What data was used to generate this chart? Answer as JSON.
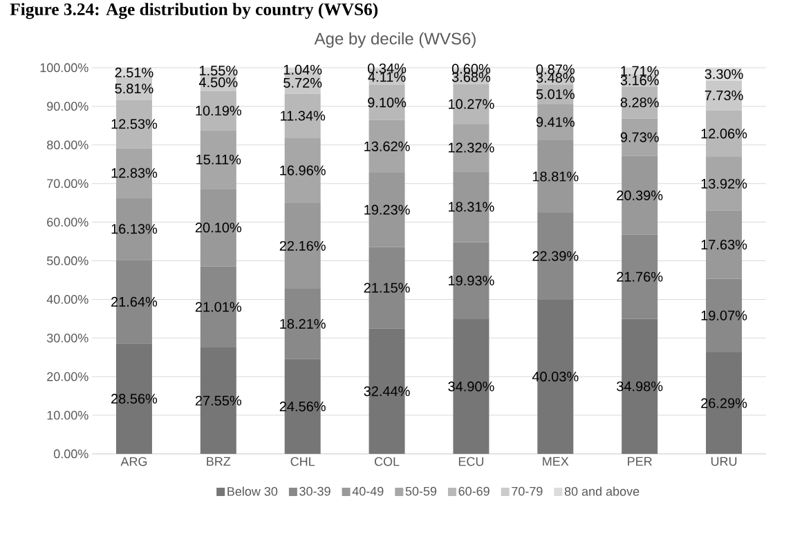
{
  "chart_data": {
    "type": "bar",
    "stacked": true,
    "title": "Figure 3.24: Age distribution by country (WVS6)",
    "subtitle": "Age by decile (WVS6)",
    "categories": [
      "ARG",
      "BRZ",
      "CHL",
      "COL",
      "ECU",
      "MEX",
      "PER",
      "URU"
    ],
    "series": [
      {
        "name": "Below 30",
        "color": "#767676",
        "values": [
          28.56,
          27.55,
          24.56,
          32.44,
          34.9,
          40.03,
          34.98,
          26.29
        ],
        "value_labels": [
          "28.56%",
          "27.55%",
          "24.56%",
          "32.44%",
          "34.90%",
          "40.03%",
          "34.98%",
          "26.29%"
        ]
      },
      {
        "name": "30-39",
        "color": "#898989",
        "values": [
          21.64,
          21.01,
          18.21,
          21.15,
          19.93,
          22.39,
          21.76,
          19.07
        ],
        "value_labels": [
          "21.64%",
          "21.01%",
          "18.21%",
          "21.15%",
          "19.93%",
          "22.39%",
          "21.76%",
          "19.07%"
        ]
      },
      {
        "name": "40-49",
        "color": "#999999",
        "values": [
          16.13,
          20.1,
          22.16,
          19.23,
          18.31,
          18.81,
          20.39,
          17.63
        ],
        "value_labels": [
          "16.13%",
          "20.10%",
          "22.16%",
          "19.23%",
          "18.31%",
          "18.81%",
          "20.39%",
          "17.63%"
        ]
      },
      {
        "name": "50-59",
        "color": "#a7a7a7",
        "values": [
          12.83,
          15.11,
          16.96,
          13.62,
          12.32,
          9.41,
          9.73,
          13.92
        ],
        "value_labels": [
          "12.83%",
          "15.11%",
          "16.96%",
          "13.62%",
          "12.32%",
          "9.41%",
          "9.73%",
          "13.92%"
        ]
      },
      {
        "name": "60-69",
        "color": "#b8b8b8",
        "values": [
          12.53,
          10.19,
          11.34,
          9.1,
          10.27,
          5.01,
          8.28,
          12.06
        ],
        "value_labels": [
          "12.53%",
          "10.19%",
          "11.34%",
          "9.10%",
          "10.27%",
          "5.01%",
          "8.28%",
          "12.06%"
        ]
      },
      {
        "name": "70-79",
        "color": "#cacaca",
        "values": [
          5.81,
          4.5,
          5.72,
          4.11,
          3.68,
          3.48,
          3.16,
          7.73
        ],
        "value_labels": [
          "5.81%",
          "4.50%",
          "5.72%",
          "4.11%",
          "3.68%",
          "3.48%",
          "3.16%",
          "7.73%"
        ]
      },
      {
        "name": "80 and above",
        "color": "#dcdcdc",
        "values": [
          2.51,
          1.55,
          1.04,
          0.34,
          0.6,
          0.87,
          1.71,
          3.3
        ],
        "value_labels": [
          "2.51%",
          "1.55%",
          "1.04%",
          "0.34%",
          "0.60%",
          "0.87%",
          "1.71%",
          "3.30%"
        ]
      }
    ],
    "ylim": [
      0,
      100
    ],
    "yticks": [
      {
        "value": 0,
        "label": "0.00%"
      },
      {
        "value": 10,
        "label": "10.00%"
      },
      {
        "value": 20,
        "label": "20.00%"
      },
      {
        "value": 30,
        "label": "30.00%"
      },
      {
        "value": 40,
        "label": "40.00%"
      },
      {
        "value": 50,
        "label": "50.00%"
      },
      {
        "value": 60,
        "label": "60.00%"
      },
      {
        "value": 70,
        "label": "70.00%"
      },
      {
        "value": 80,
        "label": "80.00%"
      },
      {
        "value": 90,
        "label": "90.00%"
      },
      {
        "value": 100,
        "label": "100.00%"
      }
    ],
    "grid": "y",
    "legend": "bottom"
  }
}
